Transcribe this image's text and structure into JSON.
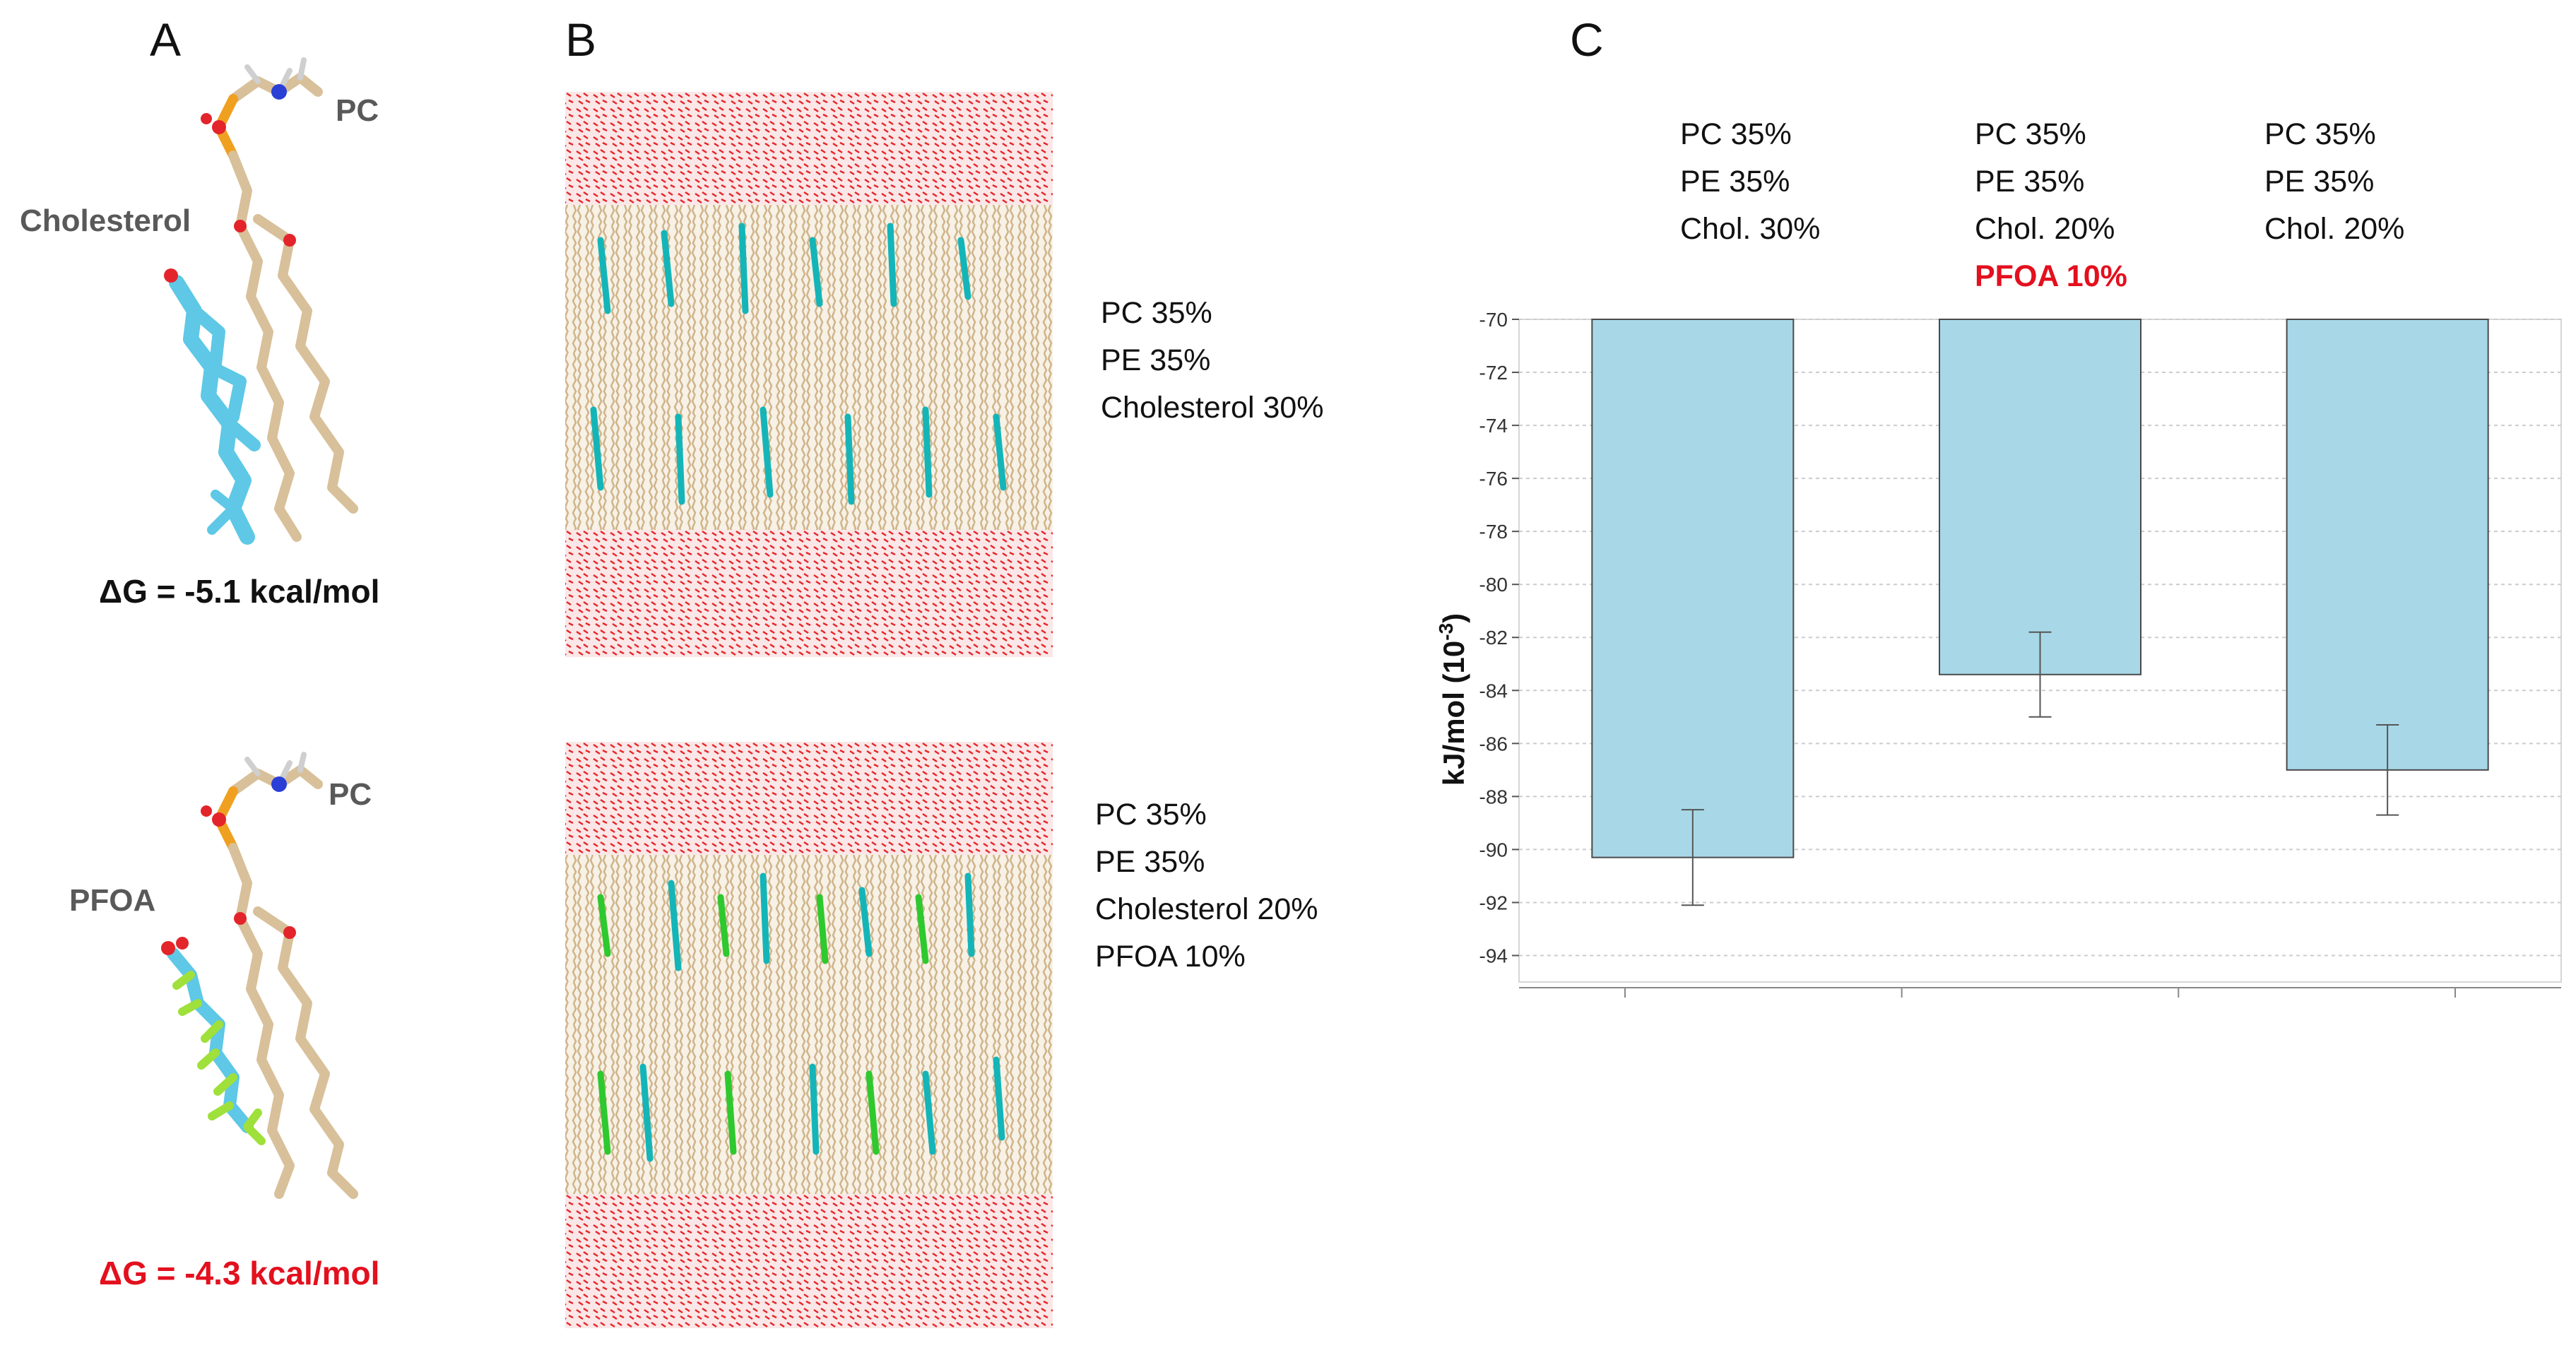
{
  "panels": {
    "a": {
      "letter": "A",
      "top": {
        "lipid_label": "PC",
        "ligand_label": "Cholesterol",
        "delta_g": "ΔG = -5.1 kcal/mol"
      },
      "bottom": {
        "lipid_label": "PC",
        "ligand_label": "PFOA",
        "delta_g": "ΔG = -4.3 kcal/mol"
      }
    },
    "b": {
      "letter": "B",
      "top_composition": [
        "PC 35%",
        "PE 35%",
        "Cholesterol 30%"
      ],
      "bottom_composition": [
        "PC 35%",
        "PE 35%",
        "Cholesterol 20%",
        "PFOA 10%"
      ]
    },
    "c": {
      "letter": "C",
      "bar_labels": [
        {
          "lines": [
            "PC 35%",
            "PE 35%",
            "Chol. 30%"
          ],
          "highlight": ""
        },
        {
          "lines": [
            "PC 35%",
            "PE 35%",
            "Chol. 20%"
          ],
          "highlight": "PFOA 10%"
        },
        {
          "lines": [
            "PC 35%",
            "PE 35%",
            "Chol. 20%"
          ],
          "highlight": ""
        }
      ]
    }
  },
  "colors": {
    "bar_fill": "#a8d8e8",
    "highlight_red": "#e3101e",
    "dg_red": "#e3101e",
    "water_red": "#e5272b",
    "lipid_tan": "#d8c09a",
    "cholesterol_cyan": "#14b5b8",
    "pfoa_green": "#2ec92e"
  },
  "chart_data": {
    "type": "bar",
    "title": "",
    "xlabel": "",
    "ylabel": "kJ/mol (10",
    "ylabel_superscript": "-3",
    "ylabel_close": ")",
    "categories": [
      "PC 35% PE 35% Chol. 30%",
      "PC 35% PE 35% Chol. 20% PFOA 10%",
      "PC 35% PE 35% Chol. 20%"
    ],
    "values": [
      -90.3,
      -83.4,
      -87.0
    ],
    "error": [
      1.8,
      1.6,
      1.7
    ],
    "baseline": -70,
    "ylim": [
      -95,
      -70
    ],
    "yticks": [
      -70,
      -72,
      -74,
      -76,
      -78,
      -80,
      -82,
      -84,
      -86,
      -88,
      -90,
      -92,
      -94
    ],
    "ytick_labels": [
      "-70",
      "-72",
      "-74",
      "-76",
      "-78",
      "-80",
      "-82",
      "-84",
      "-86",
      "-88",
      "-90",
      "-92",
      "-94"
    ],
    "grid": true
  }
}
